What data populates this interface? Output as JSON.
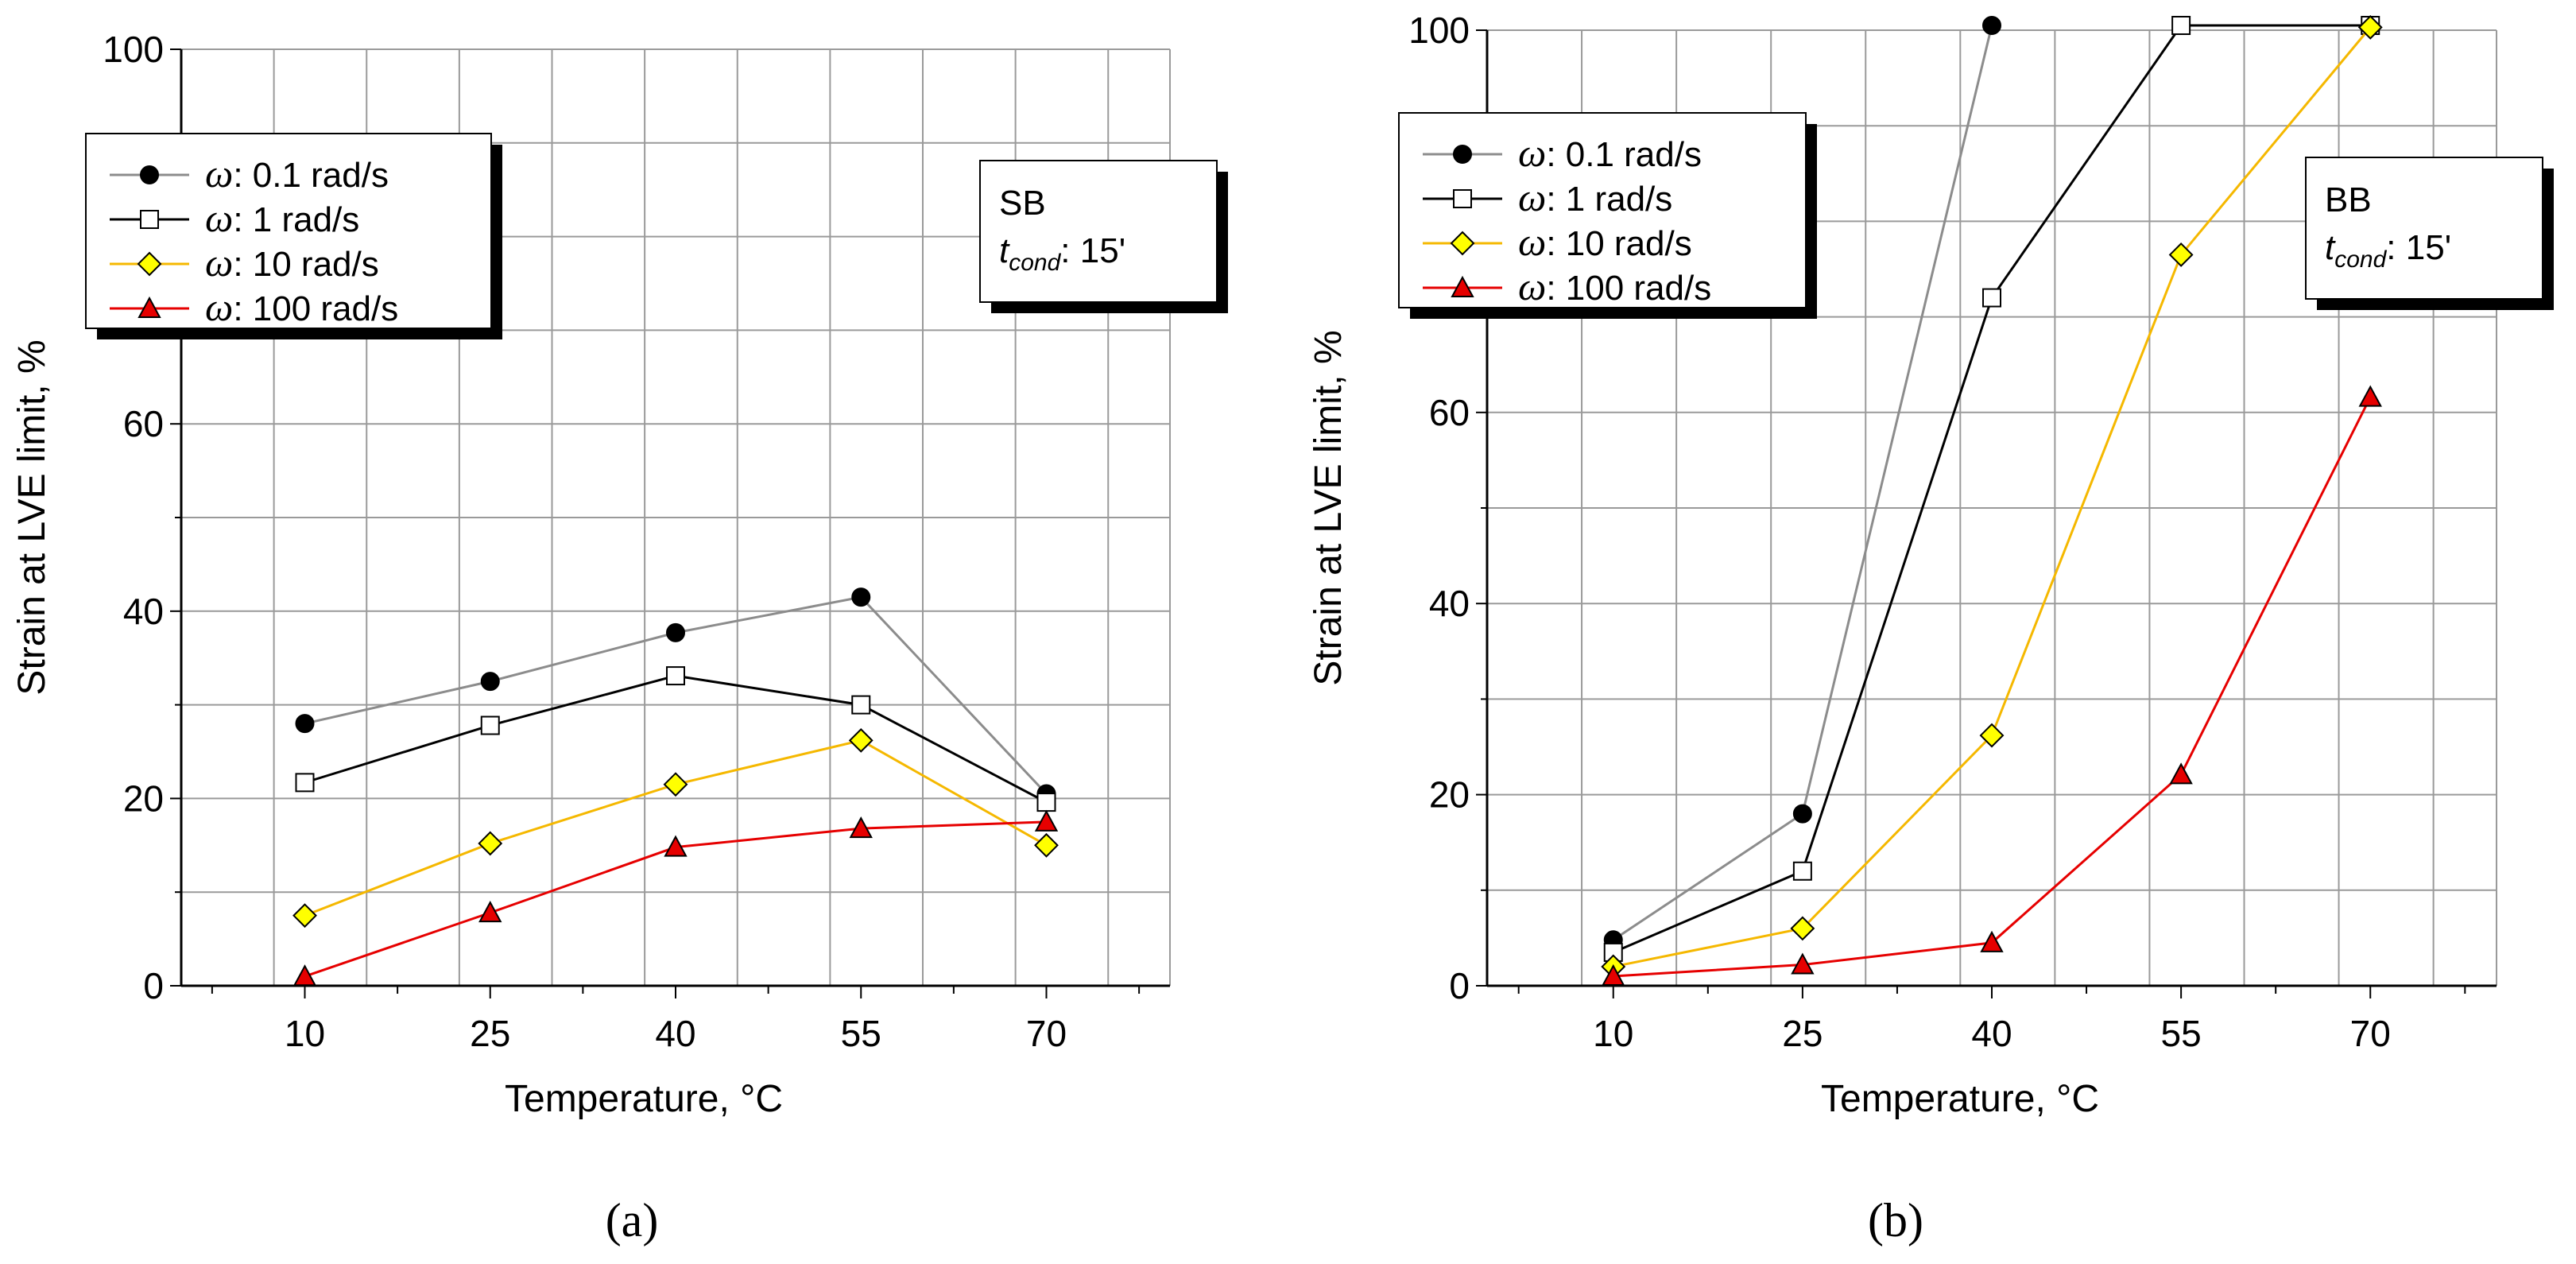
{
  "chart_data": [
    {
      "type": "line",
      "panel_label": "(a)",
      "xlabel": "Temperature, °C",
      "ylabel": "Strain at LVE limit, %",
      "x_categories": [
        10,
        25,
        40,
        55,
        70
      ],
      "xlim": [
        0,
        80
      ],
      "ylim": [
        0,
        100
      ],
      "ytick_labels": [
        0,
        20,
        40,
        60,
        100
      ],
      "grid": true,
      "legend_position": "top-left",
      "annotation": {
        "material": "SB",
        "tcond_base": "t",
        "tcond_sub": "cond",
        "tcond_value": ": 15'"
      },
      "series": [
        {
          "name": "0.1 rad/s",
          "symbol": "ω",
          "marker": "circle",
          "color": "#8c8c8c",
          "marker_fill": "#000000",
          "values": [
            28,
            32.5,
            37.7,
            41.5,
            20.5
          ]
        },
        {
          "name": "1 rad/s",
          "symbol": "ω",
          "marker": "square",
          "color": "#000000",
          "marker_fill": "#ffffff",
          "values": [
            21.7,
            27.8,
            33.1,
            30,
            19.6
          ]
        },
        {
          "name": "10 rad/s",
          "symbol": "ω",
          "marker": "diamond",
          "color": "#f5b800",
          "marker_fill": "#ffff00",
          "values": [
            7.5,
            15.2,
            21.5,
            26.2,
            15
          ]
        },
        {
          "name": "100 rad/s",
          "symbol": "ω",
          "marker": "triangle",
          "color": "#e60000",
          "marker_fill": "#e60000",
          "values": [
            1,
            7.8,
            14.8,
            16.8,
            17.5
          ]
        }
      ]
    },
    {
      "type": "line",
      "panel_label": "(b)",
      "xlabel": "Temperature, °C",
      "ylabel": "Strain at LVE limit, %",
      "x_categories": [
        10,
        25,
        40,
        55,
        70
      ],
      "xlim": [
        0,
        80
      ],
      "ylim": [
        0,
        100
      ],
      "ytick_labels": [
        0,
        20,
        40,
        60,
        100
      ],
      "grid": true,
      "legend_position": "top-left",
      "annotation": {
        "material": "BB",
        "tcond_base": "t",
        "tcond_sub": "cond",
        "tcond_value": ": 15'"
      },
      "series": [
        {
          "name": "0.1 rad/s",
          "symbol": "ω",
          "marker": "circle",
          "color": "#8c8c8c",
          "marker_fill": "#000000",
          "values": [
            4.8,
            18,
            100.5,
            null,
            null
          ]
        },
        {
          "name": "1 rad/s",
          "symbol": "ω",
          "marker": "square",
          "color": "#000000",
          "marker_fill": "#ffffff",
          "values": [
            3.5,
            12,
            72,
            100.5,
            100.5
          ]
        },
        {
          "name": "10 rad/s",
          "symbol": "ω",
          "marker": "diamond",
          "color": "#f5b800",
          "marker_fill": "#ffff00",
          "values": [
            2,
            6,
            26.2,
            76.5,
            100.3
          ]
        },
        {
          "name": "100 rad/s",
          "symbol": "ω",
          "marker": "triangle",
          "color": "#e60000",
          "marker_fill": "#e60000",
          "values": [
            1,
            2.2,
            4.5,
            22.1,
            61.6
          ]
        }
      ]
    }
  ]
}
